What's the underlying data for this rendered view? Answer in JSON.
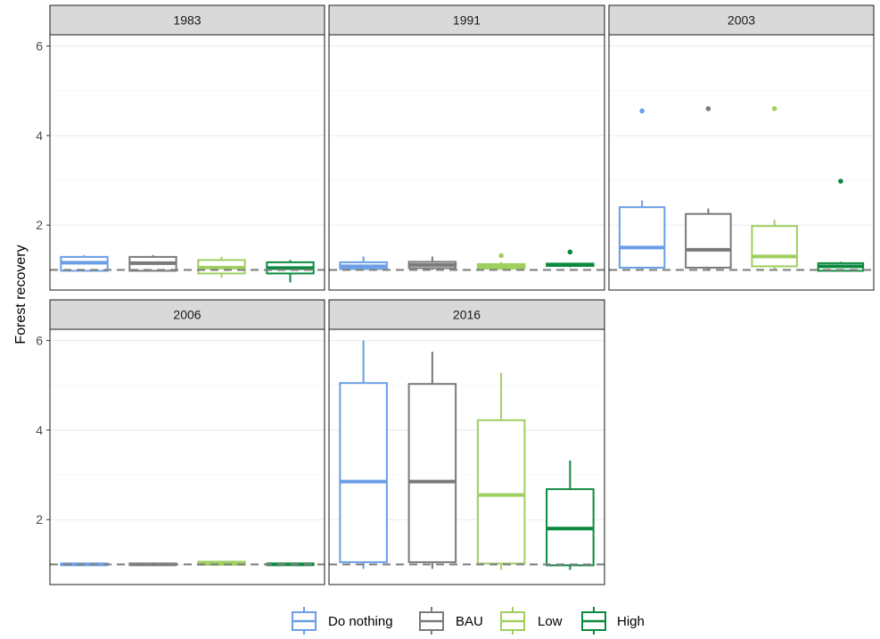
{
  "chart_data": {
    "type": "boxplot",
    "ylabel": "Forest recovery",
    "xlabel": "",
    "ylim": [
      0.55,
      6.25
    ],
    "yticks": [
      2,
      4,
      6
    ],
    "reference_line": 1,
    "legend_position": "bottom",
    "series": [
      {
        "name": "Do nothing",
        "color": "#6a9ee6"
      },
      {
        "name": "BAU",
        "color": "#7a7a7a"
      },
      {
        "name": "Low",
        "color": "#9fcf5f"
      },
      {
        "name": "High",
        "color": "#0b8a3f"
      }
    ],
    "facets": [
      {
        "label": "1983",
        "boxes": [
          {
            "series": "Do nothing",
            "whisker_low": 0.98,
            "q1": 0.98,
            "median": 1.16,
            "q3": 1.29,
            "whisker_high": 1.33,
            "outliers": []
          },
          {
            "series": "BAU",
            "whisker_low": 0.98,
            "q1": 0.98,
            "median": 1.15,
            "q3": 1.29,
            "whisker_high": 1.33,
            "outliers": []
          },
          {
            "series": "Low",
            "whisker_low": 0.82,
            "q1": 0.92,
            "median": 1.05,
            "q3": 1.22,
            "whisker_high": 1.29,
            "outliers": []
          },
          {
            "series": "High",
            "whisker_low": 0.72,
            "q1": 0.92,
            "median": 1.04,
            "q3": 1.17,
            "whisker_high": 1.22,
            "outliers": []
          }
        ]
      },
      {
        "label": "1991",
        "boxes": [
          {
            "series": "Do nothing",
            "whisker_low": 1.0,
            "q1": 1.02,
            "median": 1.08,
            "q3": 1.17,
            "whisker_high": 1.3,
            "outliers": []
          },
          {
            "series": "BAU",
            "whisker_low": 1.0,
            "q1": 1.04,
            "median": 1.11,
            "q3": 1.18,
            "whisker_high": 1.3,
            "outliers": []
          },
          {
            "series": "Low",
            "whisker_low": 1.0,
            "q1": 1.03,
            "median": 1.08,
            "q3": 1.13,
            "whisker_high": 1.18,
            "outliers": [
              1.32
            ]
          },
          {
            "series": "High",
            "whisker_low": 1.06,
            "q1": 1.09,
            "median": 1.11,
            "q3": 1.14,
            "whisker_high": 1.16,
            "outliers": [
              1.4
            ]
          }
        ]
      },
      {
        "label": "2003",
        "boxes": [
          {
            "series": "Do nothing",
            "whisker_low": 1.0,
            "q1": 1.05,
            "median": 1.5,
            "q3": 2.4,
            "whisker_high": 2.55,
            "outliers": [
              4.55
            ]
          },
          {
            "series": "BAU",
            "whisker_low": 1.0,
            "q1": 1.05,
            "median": 1.45,
            "q3": 2.25,
            "whisker_high": 2.37,
            "outliers": [
              4.6
            ]
          },
          {
            "series": "Low",
            "whisker_low": 1.0,
            "q1": 1.08,
            "median": 1.3,
            "q3": 1.98,
            "whisker_high": 2.12,
            "outliers": [
              4.6
            ]
          },
          {
            "series": "High",
            "whisker_low": 0.98,
            "q1": 0.98,
            "median": 1.08,
            "q3": 1.15,
            "whisker_high": 1.18,
            "outliers": [
              2.98
            ]
          }
        ]
      },
      {
        "label": "2006",
        "boxes": [
          {
            "series": "Do nothing",
            "whisker_low": 0.99,
            "q1": 0.99,
            "median": 1.0,
            "q3": 1.02,
            "whisker_high": 1.04,
            "outliers": []
          },
          {
            "series": "BAU",
            "whisker_low": 0.99,
            "q1": 0.99,
            "median": 1.0,
            "q3": 1.02,
            "whisker_high": 1.04,
            "outliers": []
          },
          {
            "series": "Low",
            "whisker_low": 0.99,
            "q1": 0.99,
            "median": 1.02,
            "q3": 1.06,
            "whisker_high": 1.07,
            "outliers": []
          },
          {
            "series": "High",
            "whisker_low": 0.99,
            "q1": 0.99,
            "median": 1.0,
            "q3": 1.02,
            "whisker_high": 1.03,
            "outliers": []
          }
        ]
      },
      {
        "label": "2016",
        "boxes": [
          {
            "series": "Do nothing",
            "whisker_low": 0.9,
            "q1": 1.05,
            "median": 2.85,
            "q3": 5.05,
            "whisker_high": 6.0,
            "outliers": []
          },
          {
            "series": "BAU",
            "whisker_low": 0.9,
            "q1": 1.05,
            "median": 2.85,
            "q3": 5.03,
            "whisker_high": 5.75,
            "outliers": []
          },
          {
            "series": "Low",
            "whisker_low": 0.88,
            "q1": 1.02,
            "median": 2.55,
            "q3": 4.22,
            "whisker_high": 5.28,
            "outliers": []
          },
          {
            "series": "High",
            "whisker_low": 0.88,
            "q1": 0.98,
            "median": 1.8,
            "q3": 2.68,
            "whisker_high": 3.32,
            "outliers": []
          }
        ]
      }
    ]
  }
}
